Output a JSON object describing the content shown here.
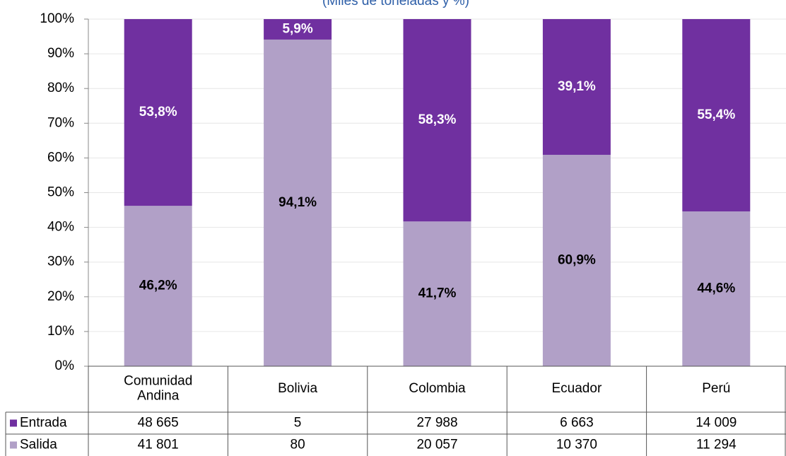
{
  "chart_data": {
    "type": "bar",
    "stacked": true,
    "subtitle": "(Miles de toneladas y %)",
    "categories": [
      "Comunidad Andina",
      "Bolivia",
      "Colombia",
      "Ecuador",
      "Perú"
    ],
    "series": [
      {
        "name": "Salida",
        "color": "#b1a0c7",
        "label_color": "#000000",
        "values": [
          46.2,
          94.1,
          41.7,
          60.9,
          44.6
        ],
        "value_labels": [
          "46,2%",
          "94,1%",
          "41,7%",
          "60,9%",
          "44,6%"
        ],
        "table_values": [
          "41 801",
          "80",
          "20 057",
          "10 370",
          "11 294"
        ]
      },
      {
        "name": "Entrada",
        "color": "#7030a0",
        "label_color": "#ffffff",
        "values": [
          53.8,
          5.9,
          58.3,
          39.1,
          55.4
        ],
        "value_labels": [
          "53,8%",
          "5,9%",
          "58,3%",
          "39,1%",
          "55,4%"
        ],
        "table_values": [
          "48 665",
          "5",
          "27 988",
          "6 663",
          "14 009"
        ]
      }
    ],
    "ylim": [
      0,
      100
    ],
    "yticks": [
      {
        "value": 0,
        "label": "0%"
      },
      {
        "value": 10,
        "label": "10%"
      },
      {
        "value": 20,
        "label": "20%"
      },
      {
        "value": 30,
        "label": "30%"
      },
      {
        "value": 40,
        "label": "40%"
      },
      {
        "value": 50,
        "label": "50%"
      },
      {
        "value": 60,
        "label": "60%"
      },
      {
        "value": 70,
        "label": "70%"
      },
      {
        "value": 80,
        "label": "80%"
      },
      {
        "value": 90,
        "label": "90%"
      },
      {
        "value": 100,
        "label": "100%"
      }
    ],
    "grid": true
  }
}
